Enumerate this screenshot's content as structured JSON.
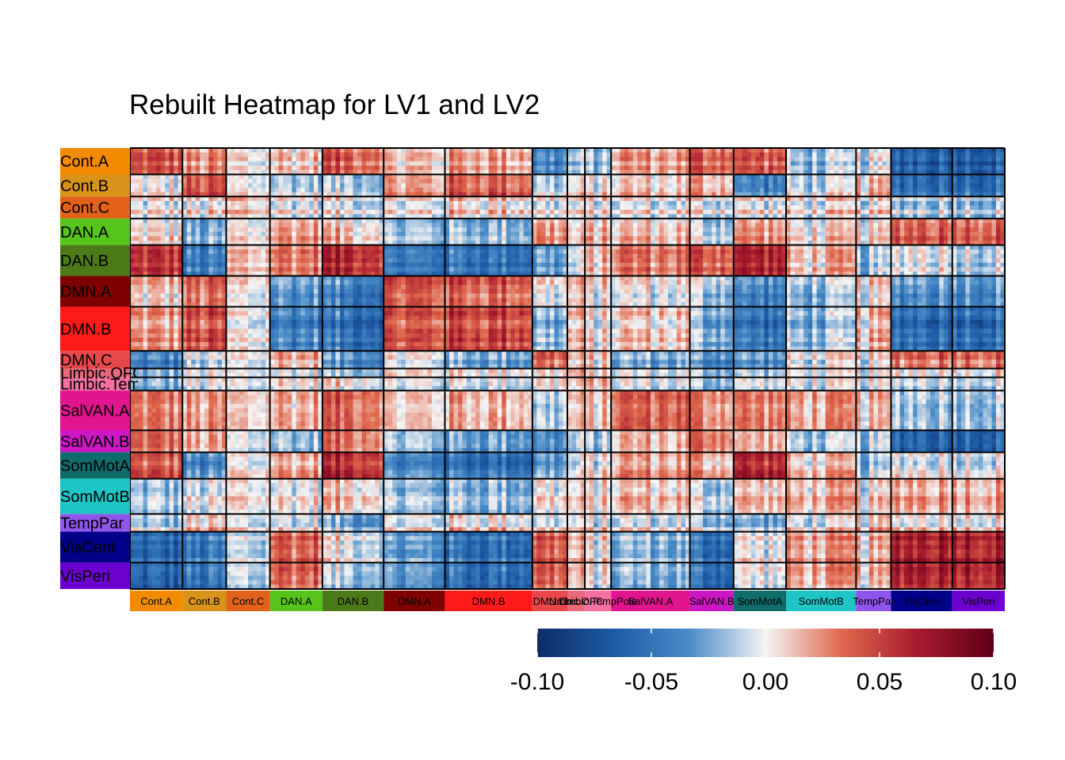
{
  "chart_data": {
    "type": "heatmap",
    "title": "Rebuilt Heatmap for LV1 and LV2",
    "xlabel": "",
    "ylabel": "",
    "networks": [
      {
        "name": "Cont.A",
        "color": "#F38B00",
        "units": 12
      },
      {
        "name": "Cont.B",
        "color": "#D9921A",
        "units": 10
      },
      {
        "name": "Cont.C",
        "color": "#E2621B",
        "units": 10
      },
      {
        "name": "DAN.A",
        "color": "#56C41A",
        "units": 12
      },
      {
        "name": "DAN.B",
        "color": "#4D7A18",
        "units": 14
      },
      {
        "name": "DMN.A",
        "color": "#7F0000",
        "units": 14
      },
      {
        "name": "DMN.B",
        "color": "#FF1A1A",
        "units": 20
      },
      {
        "name": "DMN.C",
        "color": "#E8484C",
        "units": 8
      },
      {
        "name": "Limbic.OFC",
        "color": "#E8697A",
        "units": 4
      },
      {
        "name": "Limbic.TempPole",
        "color": "#F76FA0",
        "units": 6
      },
      {
        "name": "SalVAN.A",
        "color": "#E21590",
        "units": 18
      },
      {
        "name": "SalVAN.B",
        "color": "#CC17C5",
        "units": 10
      },
      {
        "name": "SomMotA",
        "color": "#0E6C6A",
        "units": 12
      },
      {
        "name": "SomMotB",
        "color": "#1FC4C4",
        "units": 16
      },
      {
        "name": "TempPar",
        "color": "#9055EA",
        "units": 8
      },
      {
        "name": "VisCent",
        "color": "#000088",
        "units": 14
      },
      {
        "name": "VisPeri",
        "color": "#6B00CF",
        "units": 12
      }
    ],
    "row_labels": [
      "Cont.A",
      "Cont.B",
      "Cont.C",
      "DAN.A",
      "DAN.B",
      "DMN.A",
      "DMN.B",
      "DMN.C",
      "Limbic.OFC",
      "Limbic.TempPole",
      "SalVAN.A",
      "SalVAN.B",
      "SomMotA",
      "SomMotB",
      "TempPar",
      "VisCent",
      "VisPeri"
    ],
    "col_labels": [
      "Cont.A",
      "Cont.B",
      "Cont.C",
      "DAN.A",
      "DAN.B",
      "DMN.A",
      "DMN.B",
      "DMN.C",
      "Limbic.OFC",
      "Limbic.TempPole",
      "SalVAN.A",
      "SalVAN.B",
      "SomMotA",
      "SomMotB",
      "TempPar",
      "VisCent",
      "VisPeri"
    ],
    "block_means": [
      [
        0.04,
        0.02,
        0.0,
        0.01,
        0.04,
        0.01,
        0.02,
        -0.04,
        -0.02,
        -0.02,
        0.02,
        0.04,
        0.04,
        -0.02,
        -0.01,
        -0.06,
        -0.06
      ],
      [
        0.0,
        0.04,
        0.0,
        -0.01,
        -0.01,
        0.02,
        0.04,
        -0.01,
        0.0,
        0.0,
        0.01,
        0.02,
        -0.04,
        -0.01,
        0.01,
        -0.05,
        -0.05
      ],
      [
        0.0,
        0.0,
        0.01,
        0.0,
        0.0,
        0.0,
        0.01,
        0.0,
        0.0,
        0.0,
        0.0,
        0.0,
        0.0,
        0.0,
        0.0,
        -0.01,
        -0.01
      ],
      [
        0.0,
        -0.03,
        0.0,
        0.02,
        0.01,
        -0.02,
        -0.02,
        0.02,
        0.0,
        0.01,
        0.01,
        -0.01,
        0.02,
        0.0,
        0.0,
        0.04,
        0.04
      ],
      [
        0.05,
        -0.05,
        0.01,
        0.03,
        0.06,
        -0.05,
        -0.05,
        -0.03,
        -0.01,
        0.01,
        0.03,
        0.04,
        0.06,
        0.01,
        -0.02,
        0.0,
        -0.01
      ],
      [
        0.01,
        0.03,
        0.0,
        -0.03,
        -0.04,
        0.04,
        0.04,
        0.0,
        0.01,
        0.0,
        0.0,
        -0.01,
        -0.04,
        -0.02,
        0.0,
        -0.03,
        -0.03
      ],
      [
        0.02,
        0.04,
        0.0,
        -0.04,
        -0.05,
        0.04,
        0.05,
        -0.02,
        0.01,
        0.0,
        0.01,
        -0.02,
        -0.05,
        -0.02,
        0.01,
        -0.05,
        -0.05
      ],
      [
        -0.04,
        -0.01,
        0.0,
        0.02,
        -0.03,
        0.0,
        -0.02,
        0.04,
        0.01,
        0.01,
        -0.02,
        -0.03,
        -0.03,
        0.0,
        0.0,
        0.04,
        0.04
      ],
      [
        -0.02,
        0.0,
        0.0,
        0.0,
        -0.01,
        0.01,
        0.01,
        0.01,
        0.02,
        0.01,
        0.0,
        -0.01,
        -0.01,
        0.0,
        0.0,
        0.01,
        0.01
      ],
      [
        -0.02,
        0.0,
        0.0,
        0.01,
        0.01,
        0.0,
        0.0,
        0.01,
        0.01,
        0.02,
        0.0,
        -0.01,
        0.0,
        0.0,
        0.0,
        0.0,
        0.0
      ],
      [
        0.02,
        0.01,
        0.0,
        0.01,
        0.03,
        0.0,
        0.01,
        -0.02,
        0.0,
        0.0,
        0.03,
        0.02,
        0.02,
        0.01,
        0.0,
        -0.02,
        -0.02
      ],
      [
        0.04,
        0.02,
        0.0,
        -0.01,
        0.04,
        -0.01,
        -0.02,
        -0.03,
        -0.01,
        -0.01,
        0.02,
        0.04,
        0.02,
        -0.01,
        -0.01,
        -0.05,
        -0.05
      ],
      [
        0.04,
        -0.04,
        0.0,
        0.02,
        0.06,
        -0.04,
        -0.05,
        -0.03,
        -0.01,
        0.0,
        0.02,
        0.02,
        0.06,
        0.01,
        -0.02,
        0.0,
        0.0
      ],
      [
        -0.02,
        -0.01,
        0.0,
        0.0,
        0.01,
        -0.02,
        -0.02,
        0.0,
        0.0,
        0.0,
        0.01,
        -0.01,
        0.01,
        0.01,
        0.0,
        0.02,
        0.02
      ],
      [
        -0.01,
        0.01,
        0.0,
        0.0,
        -0.02,
        0.0,
        0.01,
        0.0,
        0.0,
        0.0,
        0.0,
        -0.01,
        -0.02,
        0.0,
        0.01,
        0.01,
        0.01
      ],
      [
        -0.06,
        -0.05,
        -0.01,
        0.04,
        0.0,
        -0.03,
        -0.05,
        0.04,
        0.01,
        0.0,
        -0.02,
        -0.05,
        0.0,
        0.02,
        0.01,
        0.07,
        0.07
      ],
      [
        -0.06,
        -0.05,
        -0.01,
        0.04,
        -0.01,
        -0.03,
        -0.05,
        0.04,
        0.01,
        0.0,
        -0.02,
        -0.05,
        0.0,
        0.02,
        0.01,
        0.07,
        0.07
      ]
    ],
    "colorbar": {
      "min": -0.1,
      "max": 0.1,
      "ticks": [
        -0.1,
        -0.05,
        0.0,
        0.05,
        0.1
      ],
      "tick_labels": [
        "-0.10",
        "-0.05",
        "0.00",
        "0.05",
        "0.10"
      ],
      "colors": [
        "#0C2D64",
        "#1E5AA6",
        "#4A8CC7",
        "#F5F5F5",
        "#E0694E",
        "#A81A2E",
        "#5E0016"
      ],
      "placement": "bottom-right"
    },
    "legend_placement": "bottom-right",
    "grid": false
  }
}
